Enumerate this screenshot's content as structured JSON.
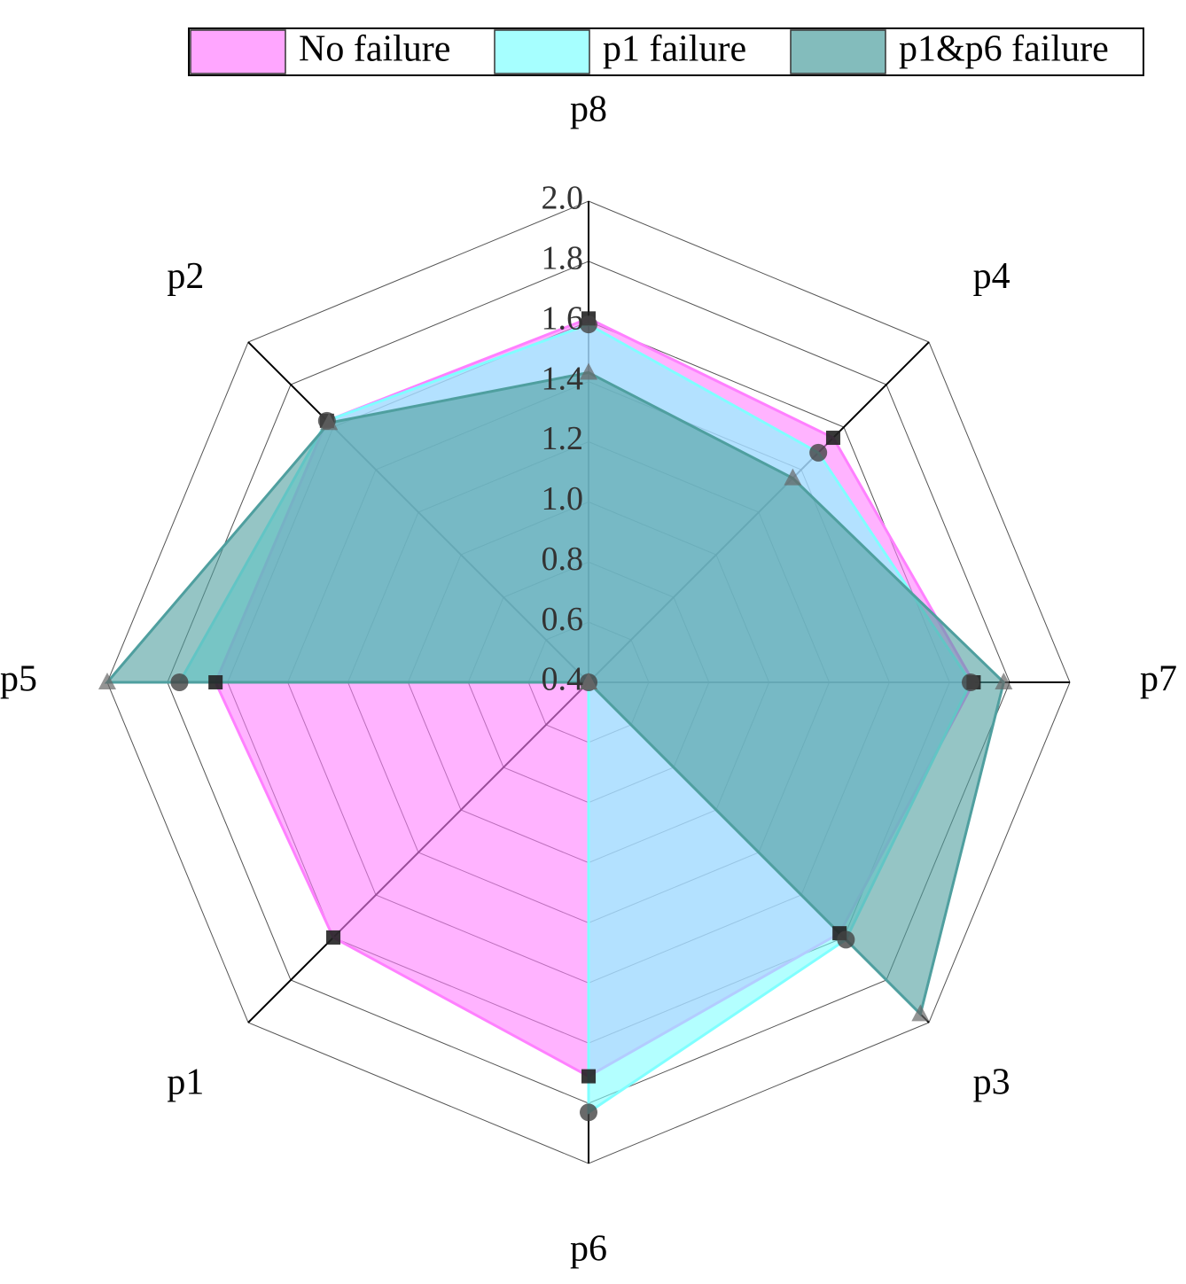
{
  "chart_data": {
    "type": "radar",
    "categories": [
      "p8",
      "p4",
      "p7",
      "p3",
      "p6",
      "p1",
      "p5",
      "p2"
    ],
    "rlim": [
      0.4,
      2.0
    ],
    "rticks": [
      0.4,
      0.6,
      0.8,
      {
        "value": 1,
        "label": "1.0"
      },
      1.2,
      1.4,
      1.6,
      1.8,
      {
        "value": 2,
        "label": "2.0"
      }
    ],
    "legend": "top",
    "series": [
      {
        "name": "No failure",
        "color": "#ff80ff",
        "marker": "square",
        "values": [
          1.61,
          1.55,
          1.68,
          1.58,
          1.71,
          1.6,
          1.64,
          1.63
        ]
      },
      {
        "name": "p1 failure",
        "color": "#80ffff",
        "marker": "circle",
        "values": [
          1.59,
          1.48,
          1.67,
          1.61,
          1.83,
          0.4,
          1.76,
          1.63
        ]
      },
      {
        "name": "p1&p6 failure",
        "color": "#4f9f9f",
        "marker": "triangle",
        "values": [
          1.43,
          1.36,
          1.78,
          1.96,
          0.4,
          0.4,
          2.0,
          1.62
        ]
      }
    ]
  }
}
